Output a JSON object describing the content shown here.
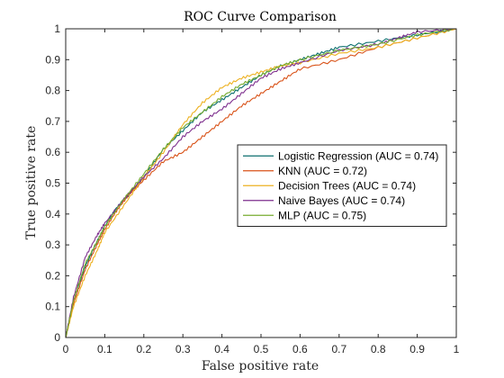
{
  "chart_data": {
    "type": "line",
    "title": "ROC Curve Comparison",
    "xlabel": "False positive rate",
    "ylabel": "True positive rate",
    "xlim": [
      0,
      1
    ],
    "ylim": [
      0,
      1
    ],
    "xticks": [
      "0",
      "0.1",
      "0.2",
      "0.3",
      "0.4",
      "0.5",
      "0.6",
      "0.7",
      "0.8",
      "0.9",
      "1"
    ],
    "yticks": [
      "0",
      "0.1",
      "0.2",
      "0.3",
      "0.4",
      "0.5",
      "0.6",
      "0.7",
      "0.8",
      "0.9",
      "1"
    ],
    "grid": false,
    "legend_position": "right",
    "series": [
      {
        "name": "Logistic Regression  (AUC = 0.74)",
        "color": "#0b6e6e",
        "x": [
          0,
          0.02,
          0.05,
          0.08,
          0.1,
          0.13,
          0.16,
          0.2,
          0.25,
          0.3,
          0.35,
          0.4,
          0.45,
          0.5,
          0.55,
          0.6,
          0.65,
          0.7,
          0.8,
          0.9,
          1.0
        ],
        "y": [
          0,
          0.12,
          0.23,
          0.31,
          0.36,
          0.42,
          0.46,
          0.52,
          0.61,
          0.67,
          0.73,
          0.77,
          0.81,
          0.85,
          0.88,
          0.9,
          0.92,
          0.94,
          0.96,
          0.98,
          1.0
        ]
      },
      {
        "name": "KNN  (AUC = 0.72)",
        "color": "#d95319",
        "x": [
          0,
          0.02,
          0.05,
          0.08,
          0.1,
          0.13,
          0.16,
          0.2,
          0.25,
          0.3,
          0.35,
          0.4,
          0.45,
          0.5,
          0.55,
          0.6,
          0.7,
          0.8,
          0.9,
          1.0
        ],
        "y": [
          0,
          0.11,
          0.22,
          0.3,
          0.35,
          0.41,
          0.46,
          0.51,
          0.57,
          0.6,
          0.65,
          0.7,
          0.75,
          0.79,
          0.83,
          0.87,
          0.9,
          0.94,
          0.97,
          1.0
        ]
      },
      {
        "name": "Decision Trees  (AUC = 0.74)",
        "color": "#edb120",
        "x": [
          0,
          0.02,
          0.05,
          0.08,
          0.1,
          0.15,
          0.2,
          0.25,
          0.3,
          0.35,
          0.4,
          0.45,
          0.5,
          0.55,
          0.6,
          0.7,
          0.8,
          0.9,
          1.0
        ],
        "y": [
          0,
          0.1,
          0.2,
          0.28,
          0.34,
          0.43,
          0.52,
          0.6,
          0.69,
          0.76,
          0.81,
          0.84,
          0.86,
          0.88,
          0.89,
          0.92,
          0.94,
          0.97,
          1.0
        ]
      },
      {
        "name": "Naive Bayes  (AUC = 0.74)",
        "color": "#7e2f8e",
        "x": [
          0,
          0.02,
          0.05,
          0.08,
          0.1,
          0.15,
          0.2,
          0.25,
          0.3,
          0.35,
          0.4,
          0.45,
          0.5,
          0.55,
          0.6,
          0.7,
          0.8,
          0.85,
          0.9,
          1.0
        ],
        "y": [
          0,
          0.13,
          0.26,
          0.33,
          0.37,
          0.45,
          0.52,
          0.58,
          0.65,
          0.7,
          0.74,
          0.79,
          0.84,
          0.87,
          0.89,
          0.93,
          0.95,
          0.97,
          0.99,
          1.0
        ]
      },
      {
        "name": "MLP  (AUC = 0.75)",
        "color": "#77ac30",
        "x": [
          0,
          0.02,
          0.05,
          0.08,
          0.1,
          0.15,
          0.2,
          0.25,
          0.3,
          0.35,
          0.4,
          0.45,
          0.5,
          0.55,
          0.6,
          0.7,
          0.8,
          0.9,
          1.0
        ],
        "y": [
          0,
          0.12,
          0.24,
          0.31,
          0.36,
          0.45,
          0.53,
          0.61,
          0.68,
          0.73,
          0.78,
          0.82,
          0.85,
          0.88,
          0.9,
          0.93,
          0.95,
          0.98,
          1.0
        ]
      }
    ]
  }
}
